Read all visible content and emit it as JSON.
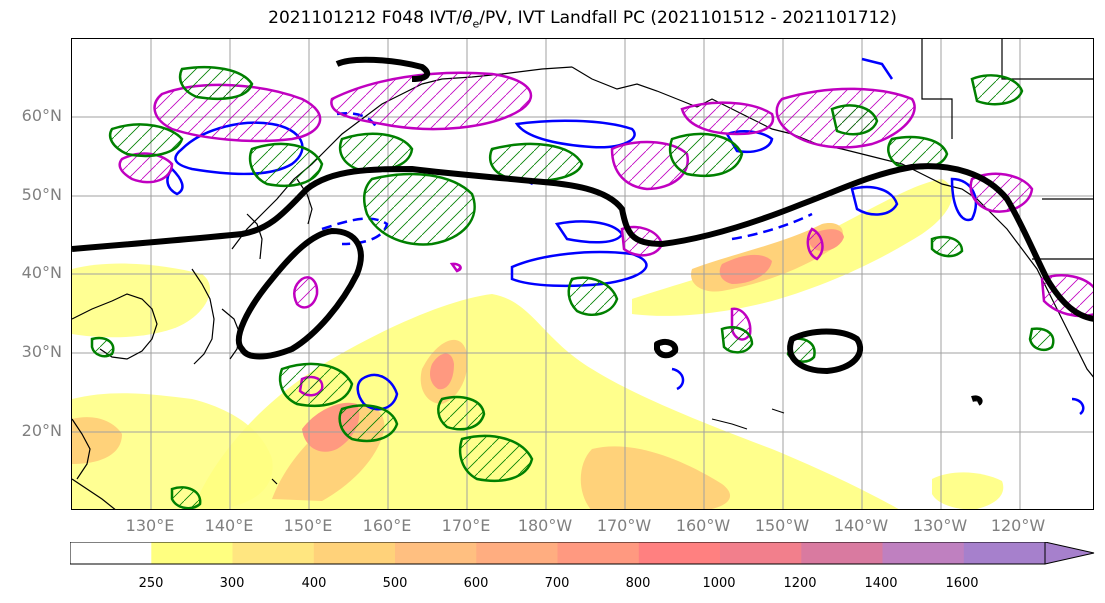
{
  "title": "2021101212 F048 IVT/θe/PV, IVT Landfall PC (2021101512 - 2021101712)",
  "title_parts": {
    "pre": "2021101212 F048 IVT/",
    "theta": "θ",
    "sub": "e",
    "post": "/PV, IVT Landfall PC (2021101512 - 2021101712)"
  },
  "lat_labels": [
    "60°N",
    "50°N",
    "40°N",
    "30°N",
    "20°N"
  ],
  "lon_labels": [
    "130°E",
    "140°E",
    "150°E",
    "160°E",
    "170°E",
    "180°W",
    "170°W",
    "160°W",
    "150°W",
    "140°W",
    "130°W",
    "120°W"
  ],
  "colorbar": {
    "ticks": [
      "250",
      "300",
      "400",
      "500",
      "600",
      "700",
      "800",
      "1000",
      "1200",
      "1400",
      "1600"
    ],
    "colors": [
      "#ffffff",
      "#ffff80",
      "#ffe680",
      "#ffd27a",
      "#ffbf80",
      "#ffad80",
      "#ff9980",
      "#ff8080",
      "#f27f8c",
      "#d97aa0",
      "#bf80c0",
      "#a680cc"
    ]
  },
  "colors": {
    "pv_contour": "#008000",
    "theta_e_contour": "#0000ff",
    "magenta_contour": "#c000c0",
    "landfall_contour": "#000000",
    "coastline": "#000000",
    "gridline": "#a0a0a0"
  }
}
